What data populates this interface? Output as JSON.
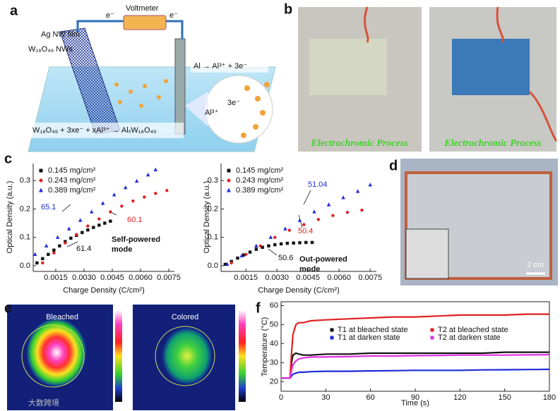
{
  "figure": {
    "panel_labels": [
      "a",
      "b",
      "c",
      "d",
      "e",
      "f"
    ],
    "a": {
      "ag_film": "Ag NW film",
      "voltmeter": "Voltmeter",
      "electron": "e⁻",
      "nws": "W₁₈O₄₉ NWs",
      "anode": "Al → Al³⁺ + 3e⁻",
      "ion": "Al³⁺",
      "three_e": "3e⁻",
      "equation": "W₁₈O₄₉ + 3xe⁻ + xAl³⁺ → AlₓW₁₈O₄₉"
    },
    "b": {
      "caption": "Electrochromic Process"
    },
    "d": {
      "scale": "2 cm"
    },
    "e": {
      "left": "Bleached",
      "right": "Colored"
    },
    "watermark": "大数跨境"
  },
  "chart_data": [
    {
      "type": "scatter",
      "xlabel": "Charge Density (C/cm²)",
      "ylabel": "Optical Density (a.u.)",
      "xlim": [
        0.0003,
        0.0078
      ],
      "ylim": [
        -0.02,
        0.36
      ],
      "xticks": [
        0.0015,
        {
          "value": 0.003,
          "label": "0.0030"
        },
        0.0045,
        {
          "value": 0.006,
          "label": "0.0060"
        },
        0.0075
      ],
      "yticks": [
        {
          "value": 0,
          "label": "0.0"
        },
        0.1,
        0.2,
        0.3
      ],
      "mode_label": [
        "Self-powered",
        "mode"
      ],
      "annotations": [
        {
          "text": "65.1",
          "color": "#1f2bd8"
        },
        {
          "text": "60.1",
          "color": "#e02020"
        },
        {
          "text": "61.4",
          "color": "#111111"
        }
      ],
      "series": [
        {
          "name": "0.145 mg/cm²",
          "color": "#111111",
          "marker": "square",
          "x": [
            0.0005,
            0.0008,
            0.0011,
            0.0014,
            0.0017,
            0.002,
            0.0023,
            0.0026,
            0.0029,
            0.0032,
            0.0035,
            0.0038,
            0.0041,
            0.0044
          ],
          "values": [
            0.01,
            0.025,
            0.04,
            0.055,
            0.07,
            0.085,
            0.097,
            0.107,
            0.117,
            0.126,
            0.135,
            0.143,
            0.15,
            0.157
          ]
        },
        {
          "name": "0.243 mg/cm²",
          "color": "#e02020",
          "marker": "circle",
          "x": [
            0.0008,
            0.0014,
            0.002,
            0.0026,
            0.0032,
            0.0038,
            0.0044,
            0.005,
            0.0056,
            0.0062,
            0.0068,
            0.0074
          ],
          "values": [
            0.01,
            0.045,
            0.08,
            0.11,
            0.14,
            0.165,
            0.19,
            0.21,
            0.228,
            0.242,
            0.255,
            0.265
          ]
        },
        {
          "name": "0.389 mg/cm²",
          "color": "#1f2bd8",
          "marker": "triangle",
          "x": [
            0.0004,
            0.001,
            0.0016,
            0.0022,
            0.0028,
            0.0034,
            0.004,
            0.0046,
            0.0052,
            0.0058,
            0.0064,
            0.0068
          ],
          "values": [
            0.04,
            0.07,
            0.1,
            0.13,
            0.16,
            0.19,
            0.22,
            0.25,
            0.275,
            0.298,
            0.32,
            0.338
          ]
        }
      ]
    },
    {
      "type": "scatter",
      "xlabel": "Charge Density (C/cm²)",
      "ylabel": "Optical Density (a.u.)",
      "xlim": [
        0.0003,
        0.0078
      ],
      "ylim": [
        -0.02,
        0.36
      ],
      "xticks": [
        0.0015,
        {
          "value": 0.003,
          "label": "0.0030"
        },
        0.0045,
        {
          "value": 0.006,
          "label": "0.0060"
        },
        0.0075
      ],
      "yticks": [
        {
          "value": 0,
          "label": "0.0"
        },
        0.1,
        0.2,
        0.3
      ],
      "mode_label": [
        "Out-powered",
        "mode"
      ],
      "annotations": [
        {
          "text": "51.04",
          "color": "#1f2bd8"
        },
        {
          "text": "50.4",
          "color": "#e02020"
        },
        {
          "text": "50.6",
          "color": "#111111"
        }
      ],
      "series": [
        {
          "name": "0.145 mg/cm²",
          "color": "#111111",
          "marker": "square",
          "x": [
            0.0005,
            0.0008,
            0.0011,
            0.0014,
            0.0017,
            0.002,
            0.0023,
            0.0026,
            0.0029,
            0.0032,
            0.0035,
            0.0038,
            0.0041,
            0.0044,
            0.0047
          ],
          "values": [
            0.005,
            0.015,
            0.027,
            0.038,
            0.048,
            0.058,
            0.065,
            0.07,
            0.074,
            0.077,
            0.079,
            0.08,
            0.081,
            0.082,
            0.082
          ]
        },
        {
          "name": "0.243 mg/cm²",
          "color": "#e02020",
          "marker": "circle",
          "x": [
            0.0008,
            0.0015,
            0.0022,
            0.0029,
            0.0036,
            0.0043,
            0.005,
            0.0057,
            0.0064,
            0.0071
          ],
          "values": [
            0.01,
            0.04,
            0.07,
            0.1,
            0.125,
            0.145,
            0.163,
            0.177,
            0.188,
            0.196
          ]
        },
        {
          "name": "0.389 mg/cm²",
          "color": "#1f2bd8",
          "marker": "triangle",
          "x": [
            0.0006,
            0.0013,
            0.002,
            0.0027,
            0.0034,
            0.0041,
            0.0048,
            0.0055,
            0.0062,
            0.0069,
            0.0075
          ],
          "values": [
            0.005,
            0.035,
            0.07,
            0.1,
            0.13,
            0.16,
            0.19,
            0.215,
            0.24,
            0.262,
            0.285
          ]
        }
      ]
    },
    {
      "type": "line",
      "xlabel": "Time (s)",
      "ylabel": "Temperature (°C)",
      "xlim": [
        0,
        180
      ],
      "ylim": [
        15,
        62
      ],
      "xticks": [
        0,
        30,
        60,
        90,
        120,
        150,
        180
      ],
      "yticks": [
        20,
        30,
        40,
        50,
        60
      ],
      "x": [
        0,
        3,
        6,
        7,
        8,
        10,
        12,
        15,
        20,
        30,
        45,
        60,
        75,
        90,
        105,
        120,
        135,
        150,
        165,
        180
      ],
      "series": [
        {
          "name": "T1 at bleached state",
          "color": "#111111",
          "values": [
            22,
            22,
            22,
            30,
            34,
            35,
            34.5,
            34,
            34,
            34.5,
            34.5,
            35,
            35,
            35,
            35,
            35,
            35,
            35.5,
            35.5,
            35.5
          ]
        },
        {
          "name": "T2 at bleached state",
          "color": "#e02020",
          "values": [
            22,
            22,
            22,
            35,
            45,
            50,
            51,
            51,
            52,
            52.5,
            53,
            53.5,
            54,
            54,
            54.5,
            55,
            55,
            55,
            55.5,
            55.5
          ]
        },
        {
          "name": "T1 at darken state",
          "color": "#1f2bd8",
          "values": [
            22,
            22,
            22,
            23,
            24,
            24.5,
            25,
            25,
            25.3,
            25.5,
            25.5,
            25.7,
            25.8,
            26,
            26,
            26,
            26.2,
            26.3,
            26.4,
            26.5
          ]
        },
        {
          "name": "T2 at darken state",
          "color": "#e030e0",
          "values": [
            22,
            22,
            22,
            26,
            29,
            31,
            32,
            32.5,
            33,
            33,
            33.2,
            33.5,
            33.5,
            33.7,
            33.8,
            34,
            34,
            34,
            34.1,
            34.2
          ]
        }
      ]
    }
  ]
}
